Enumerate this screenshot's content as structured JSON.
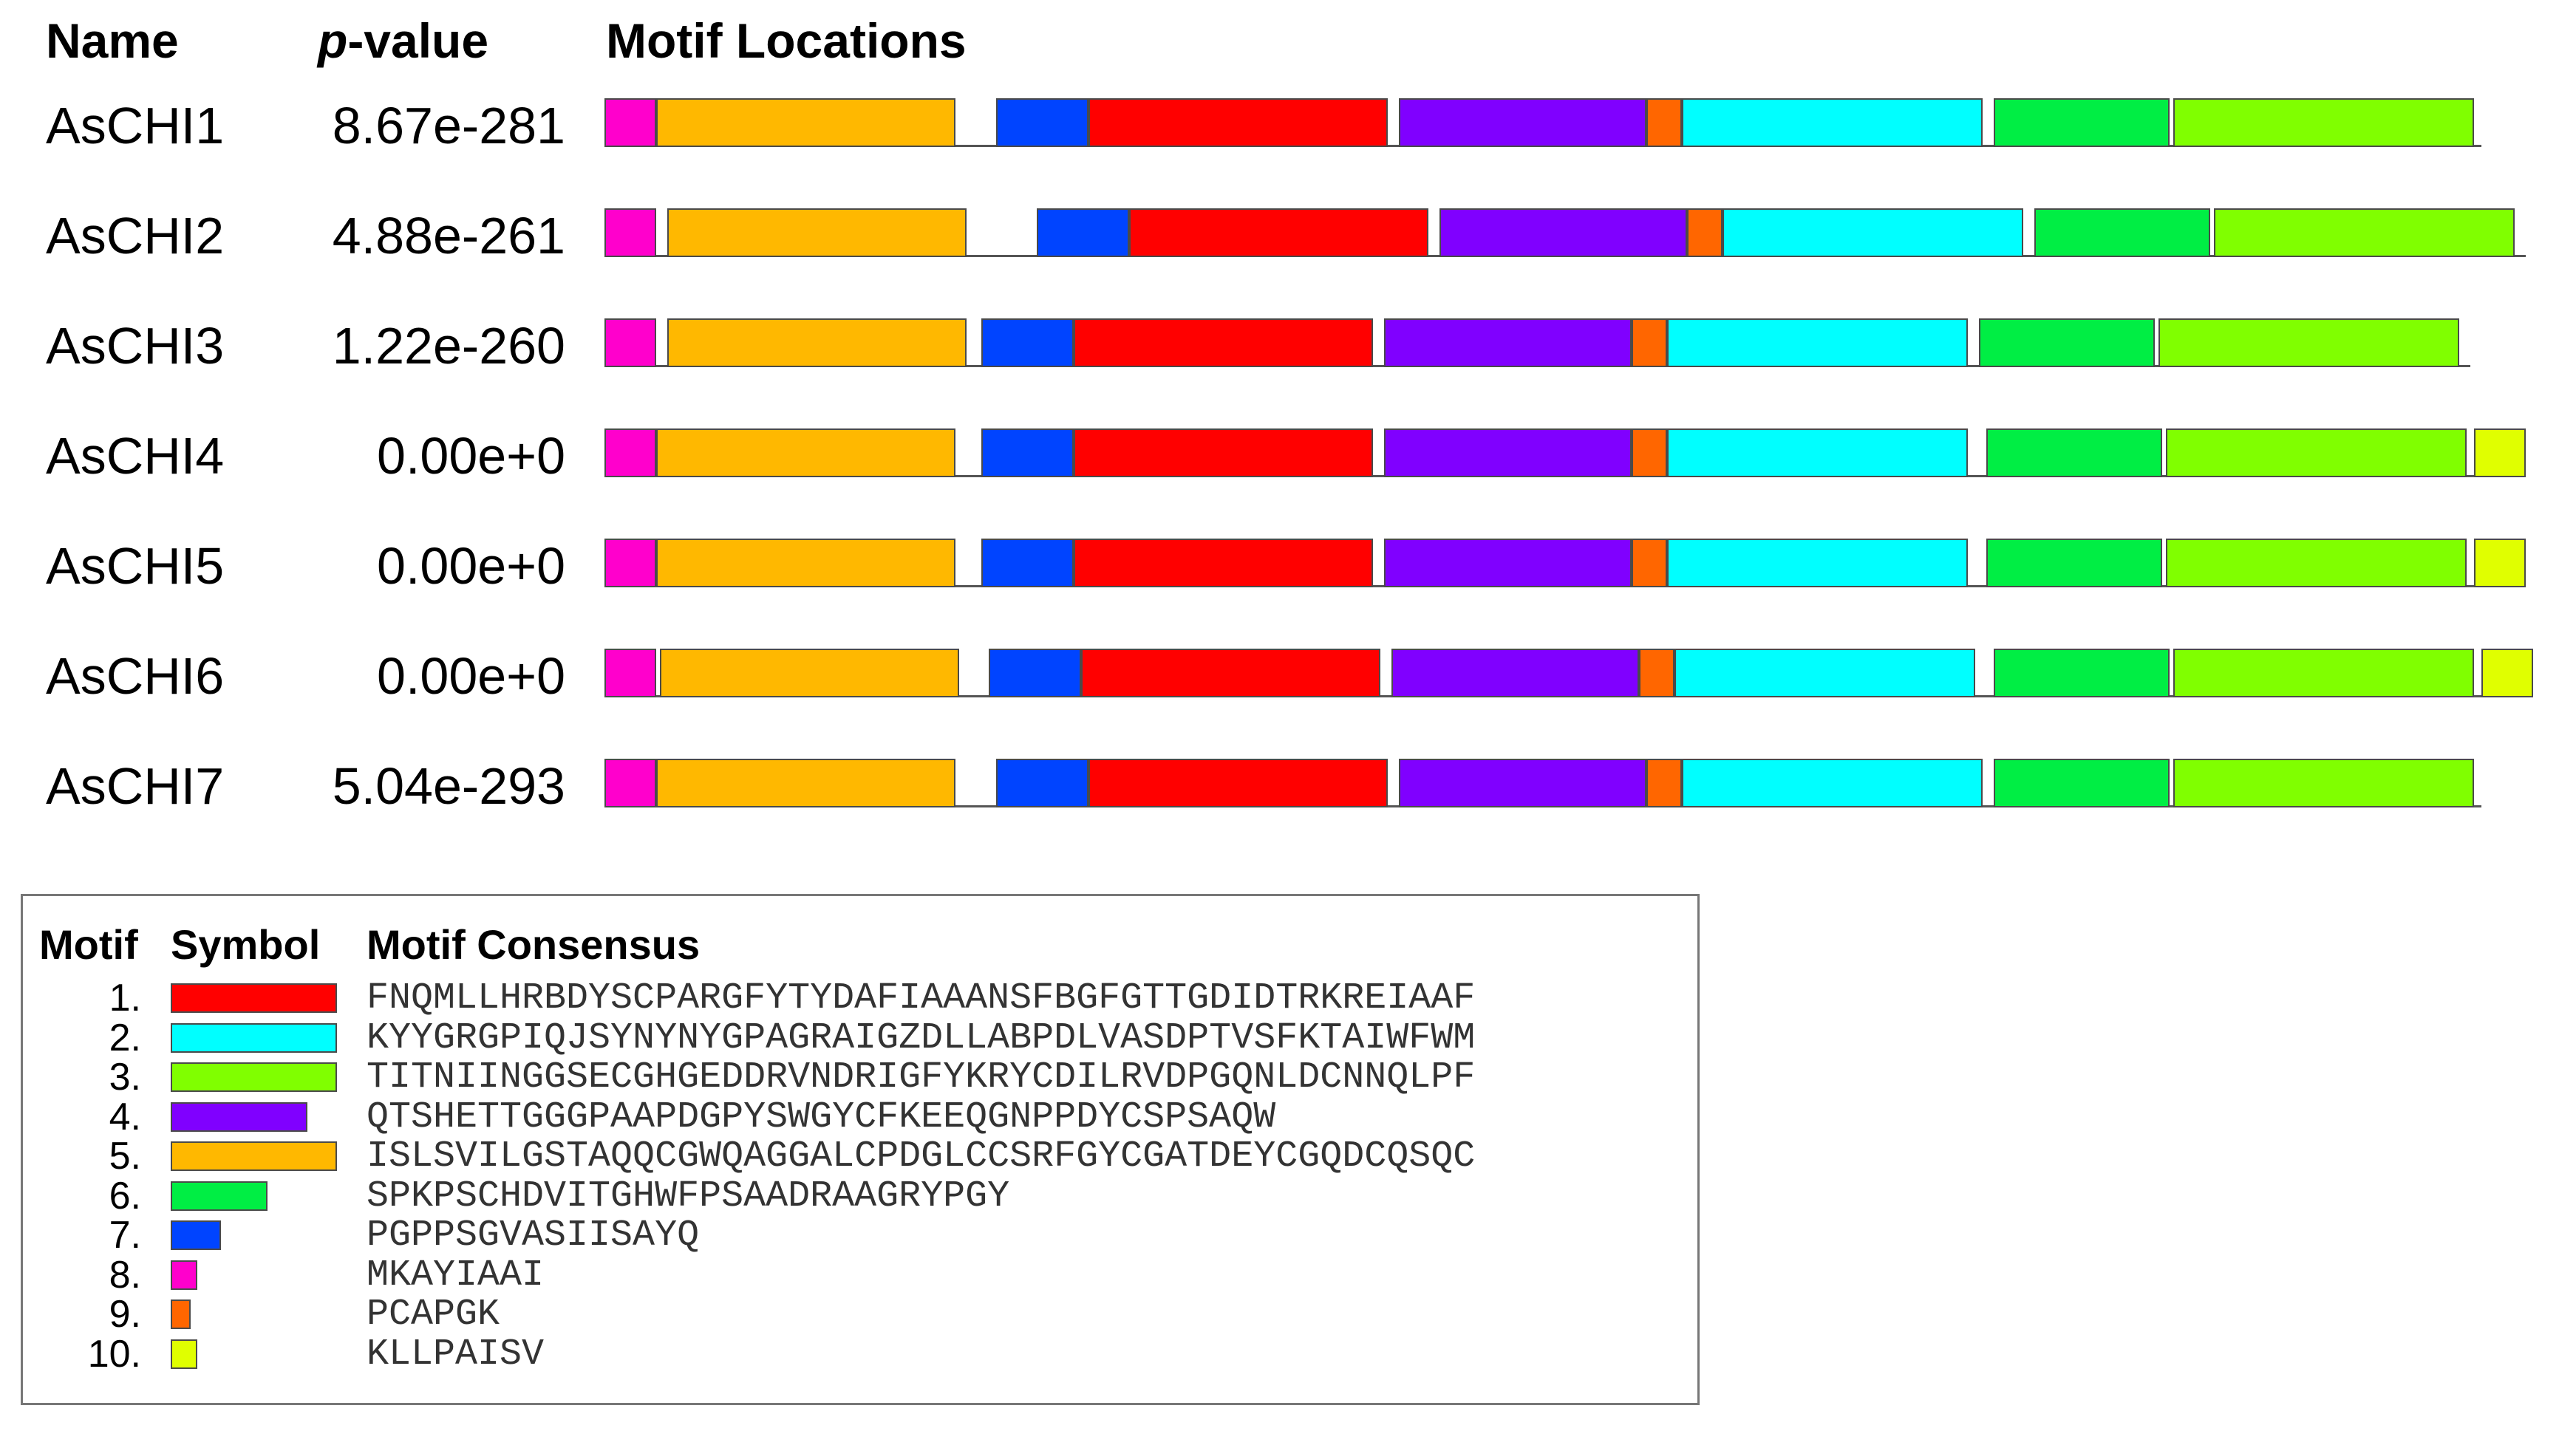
{
  "headers": {
    "name": "Name",
    "pvalue_italic": "p",
    "pvalue_rest": "-value",
    "locations": "Motif Locations"
  },
  "colors": {
    "m1": "#ff0000",
    "m2": "#00ffff",
    "m3": "#80ff00",
    "m4": "#8000ff",
    "m5": "#ffb800",
    "m6": "#00ee44",
    "m7": "#0044ff",
    "m8": "#ff00cc",
    "m9": "#ff6600",
    "m10": "#e0ff00"
  },
  "chart_data": {
    "type": "motif-locations",
    "sequences": [
      {
        "name": "AsCHI1",
        "pvalue": "8.67e-281",
        "end": 2540,
        "motifs": [
          {
            "id": 8,
            "start": 0,
            "end": 70
          },
          {
            "id": 5,
            "start": 70,
            "end": 475
          },
          {
            "id": 7,
            "start": 530,
            "end": 655
          },
          {
            "id": 1,
            "start": 655,
            "end": 1060
          },
          {
            "id": 4,
            "start": 1075,
            "end": 1410
          },
          {
            "id": 9,
            "start": 1410,
            "end": 1458
          },
          {
            "id": 2,
            "start": 1458,
            "end": 1865
          },
          {
            "id": 6,
            "start": 1880,
            "end": 2118
          },
          {
            "id": 3,
            "start": 2123,
            "end": 2530
          }
        ]
      },
      {
        "name": "AsCHI2",
        "pvalue": "4.88e-261",
        "end": 2600,
        "motifs": [
          {
            "id": 8,
            "start": 0,
            "end": 70
          },
          {
            "id": 5,
            "start": 85,
            "end": 490
          },
          {
            "id": 7,
            "start": 585,
            "end": 710
          },
          {
            "id": 1,
            "start": 710,
            "end": 1115
          },
          {
            "id": 4,
            "start": 1130,
            "end": 1465
          },
          {
            "id": 9,
            "start": 1465,
            "end": 1513
          },
          {
            "id": 2,
            "start": 1513,
            "end": 1920
          },
          {
            "id": 6,
            "start": 1935,
            "end": 2173
          },
          {
            "id": 3,
            "start": 2178,
            "end": 2585
          }
        ]
      },
      {
        "name": "AsCHI3",
        "pvalue": "1.22e-260",
        "end": 2525,
        "motifs": [
          {
            "id": 8,
            "start": 0,
            "end": 70
          },
          {
            "id": 5,
            "start": 85,
            "end": 490
          },
          {
            "id": 7,
            "start": 510,
            "end": 635
          },
          {
            "id": 1,
            "start": 635,
            "end": 1040
          },
          {
            "id": 4,
            "start": 1055,
            "end": 1390
          },
          {
            "id": 9,
            "start": 1390,
            "end": 1438
          },
          {
            "id": 2,
            "start": 1438,
            "end": 1845
          },
          {
            "id": 6,
            "start": 1860,
            "end": 2098
          },
          {
            "id": 3,
            "start": 2103,
            "end": 2510
          }
        ]
      },
      {
        "name": "AsCHI4",
        "pvalue": "0.00e+0",
        "end": 2600,
        "motifs": [
          {
            "id": 8,
            "start": 0,
            "end": 70
          },
          {
            "id": 5,
            "start": 70,
            "end": 475
          },
          {
            "id": 7,
            "start": 510,
            "end": 635
          },
          {
            "id": 1,
            "start": 635,
            "end": 1040
          },
          {
            "id": 4,
            "start": 1055,
            "end": 1390
          },
          {
            "id": 9,
            "start": 1390,
            "end": 1438
          },
          {
            "id": 2,
            "start": 1438,
            "end": 1845
          },
          {
            "id": 6,
            "start": 1870,
            "end": 2108
          },
          {
            "id": 3,
            "start": 2113,
            "end": 2520
          },
          {
            "id": 10,
            "start": 2530,
            "end": 2600
          }
        ]
      },
      {
        "name": "AsCHI5",
        "pvalue": "0.00e+0",
        "end": 2600,
        "motifs": [
          {
            "id": 8,
            "start": 0,
            "end": 70
          },
          {
            "id": 5,
            "start": 70,
            "end": 475
          },
          {
            "id": 7,
            "start": 510,
            "end": 635
          },
          {
            "id": 1,
            "start": 635,
            "end": 1040
          },
          {
            "id": 4,
            "start": 1055,
            "end": 1390
          },
          {
            "id": 9,
            "start": 1390,
            "end": 1438
          },
          {
            "id": 2,
            "start": 1438,
            "end": 1845
          },
          {
            "id": 6,
            "start": 1870,
            "end": 2108
          },
          {
            "id": 3,
            "start": 2113,
            "end": 2520
          },
          {
            "id": 10,
            "start": 2530,
            "end": 2600
          }
        ]
      },
      {
        "name": "AsCHI6",
        "pvalue": "0.00e+0",
        "end": 2610,
        "motifs": [
          {
            "id": 8,
            "start": 0,
            "end": 70
          },
          {
            "id": 5,
            "start": 75,
            "end": 480
          },
          {
            "id": 7,
            "start": 520,
            "end": 645
          },
          {
            "id": 1,
            "start": 645,
            "end": 1050
          },
          {
            "id": 4,
            "start": 1065,
            "end": 1400
          },
          {
            "id": 9,
            "start": 1400,
            "end": 1448
          },
          {
            "id": 2,
            "start": 1448,
            "end": 1855
          },
          {
            "id": 6,
            "start": 1880,
            "end": 2118
          },
          {
            "id": 3,
            "start": 2123,
            "end": 2530
          },
          {
            "id": 10,
            "start": 2540,
            "end": 2610
          }
        ]
      },
      {
        "name": "AsCHI7",
        "pvalue": "5.04e-293",
        "end": 2540,
        "motifs": [
          {
            "id": 8,
            "start": 0,
            "end": 70
          },
          {
            "id": 5,
            "start": 70,
            "end": 475
          },
          {
            "id": 7,
            "start": 530,
            "end": 655
          },
          {
            "id": 1,
            "start": 655,
            "end": 1060
          },
          {
            "id": 4,
            "start": 1075,
            "end": 1410
          },
          {
            "id": 9,
            "start": 1410,
            "end": 1458
          },
          {
            "id": 2,
            "start": 1458,
            "end": 1865
          },
          {
            "id": 6,
            "start": 1880,
            "end": 2118
          },
          {
            "id": 3,
            "start": 2123,
            "end": 2530
          }
        ]
      }
    ]
  },
  "legend": {
    "headers": {
      "motif": "Motif",
      "symbol": "Symbol",
      "consensus": "Motif Consensus"
    },
    "items": [
      {
        "num": "1.",
        "id": 1,
        "width": 50,
        "consensus": "FNQMLLHRBDYSCPARGFYTYDAFIAAANSFBGFGTTGDIDTRKREIAAF"
      },
      {
        "num": "2.",
        "id": 2,
        "width": 50,
        "consensus": "KYYGRGPIQJSYNYNYGPAGRAIGZDLLABPDLVASDPTVSFKTAIWFWM"
      },
      {
        "num": "3.",
        "id": 3,
        "width": 50,
        "consensus": "TITNIINGGSECGHGEDDRVNDRIGFYKRYCDILRVDPGQNLDCNNQLPF"
      },
      {
        "num": "4.",
        "id": 4,
        "width": 41,
        "consensus": "QTSHETTGGGPAAPDGPYSWGYCFKEEQGNPPDYCSPSAQW"
      },
      {
        "num": "5.",
        "id": 5,
        "width": 50,
        "consensus": "ISLSVILGSTAQQCGWQAGGALCPDGLCCSRFGYCGATDEYCGQDCQSQC"
      },
      {
        "num": "6.",
        "id": 6,
        "width": 29,
        "consensus": "SPKPSCHDVITGHWFPSAADRAAGRYPGY"
      },
      {
        "num": "7.",
        "id": 7,
        "width": 15,
        "consensus": "PGPPSGVASIISAYQ"
      },
      {
        "num": "8.",
        "id": 8,
        "width": 8,
        "consensus": "MKAYIAAI"
      },
      {
        "num": "9.",
        "id": 9,
        "width": 6,
        "consensus": "PCAPGK"
      },
      {
        "num": "10.",
        "id": 10,
        "width": 8,
        "consensus": "KLLPAISV"
      }
    ]
  }
}
